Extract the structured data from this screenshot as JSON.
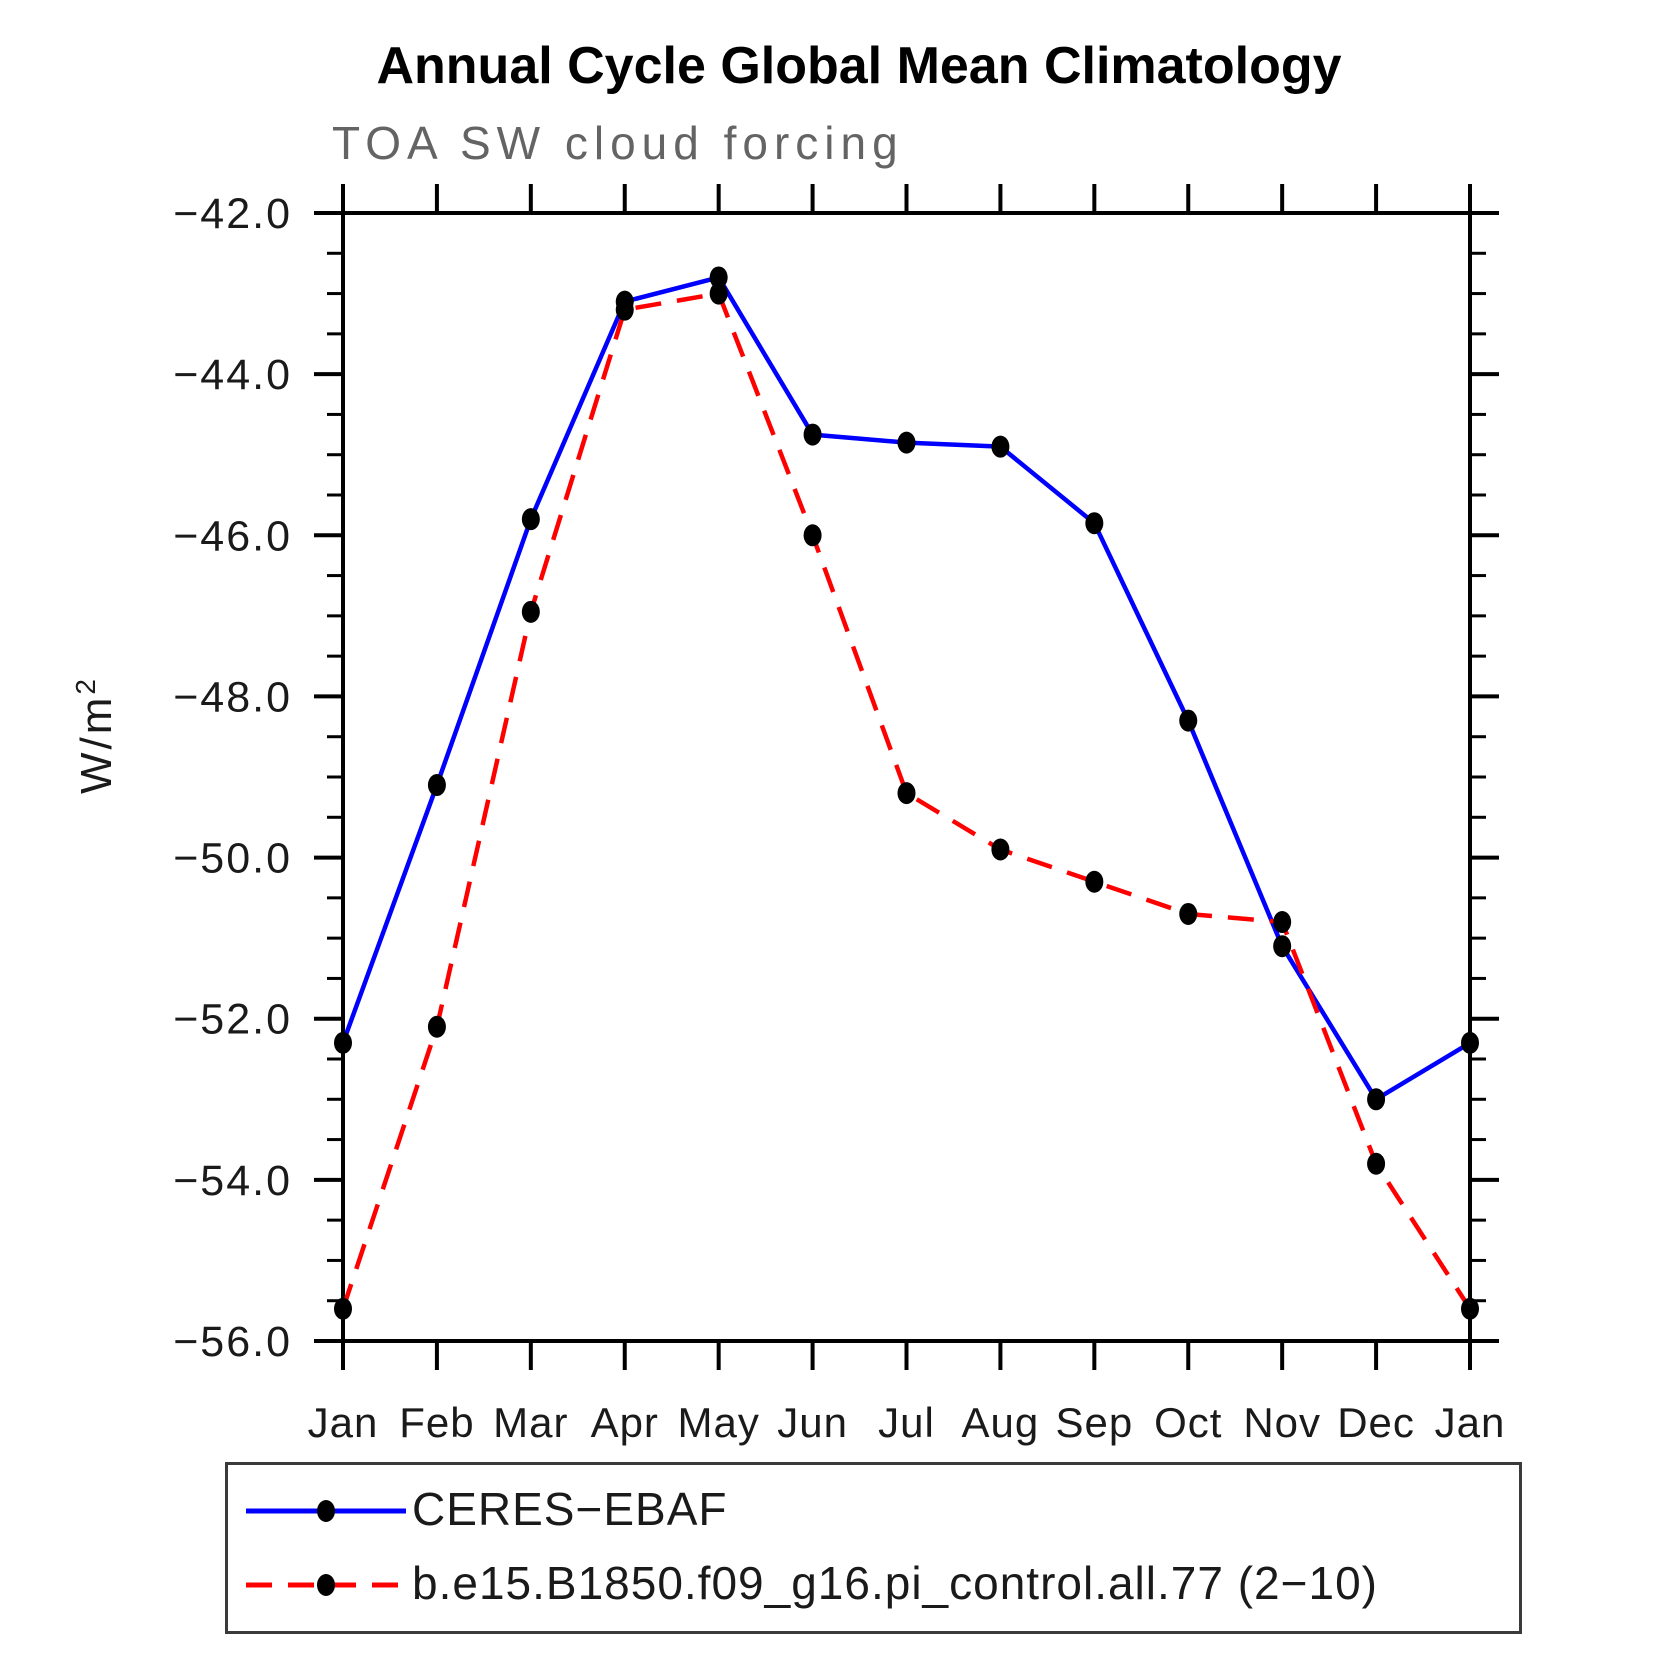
{
  "chart_data": {
    "type": "line",
    "title": "Annual Cycle Global Mean Climatology",
    "subtitle": "TOA SW cloud forcing",
    "ylabel_base": "W/m",
    "ylabel_exp": "2",
    "categories": [
      "Jan",
      "Feb",
      "Mar",
      "Apr",
      "May",
      "Jun",
      "Jul",
      "Aug",
      "Sep",
      "Oct",
      "Nov",
      "Dec",
      "Jan"
    ],
    "ylim": [
      -56.0,
      -42.0
    ],
    "ytick_major_step": 2.0,
    "ytick_minor_step": 0.5,
    "ytick_labels": [
      "−42.0",
      "−44.0",
      "−46.0",
      "−48.0",
      "−50.0",
      "−52.0",
      "−54.0",
      "−56.0"
    ],
    "grid": false,
    "legend_position": "bottom-left",
    "marker_color": "#000000",
    "frame_color": "#000000",
    "subtitle_color": "#646464",
    "series": [
      {
        "name": "CERES−EBAF",
        "color": "#0000ff",
        "line_style": "solid",
        "values": [
          -52.3,
          -49.1,
          -45.8,
          -43.1,
          -42.8,
          -44.75,
          -44.85,
          -44.9,
          -45.85,
          -48.3,
          -51.1,
          -53.0,
          -52.3
        ]
      },
      {
        "name": "b.e15.B1850.f09_g16.pi_control.all.77 (2−10)",
        "color": "#ff0000",
        "line_style": "dashed",
        "values": [
          -55.6,
          -52.1,
          -46.95,
          -43.2,
          -43.0,
          -46.0,
          -49.2,
          -49.9,
          -50.3,
          -50.7,
          -50.8,
          -53.8,
          -55.6
        ]
      }
    ]
  }
}
